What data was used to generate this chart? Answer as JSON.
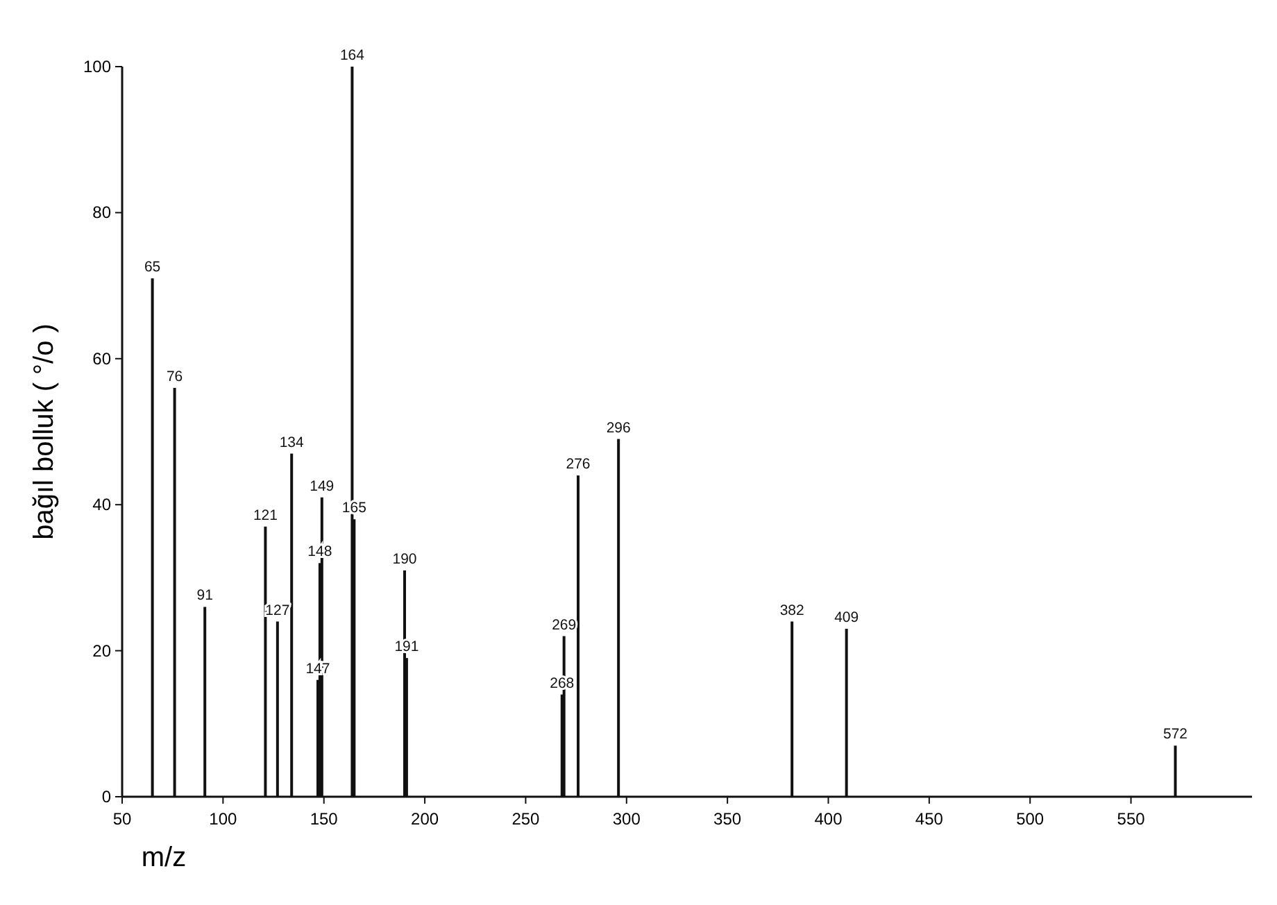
{
  "chart_data": {
    "type": "bar",
    "xlabel": "m/z",
    "ylabel": "bağıl bolluk ( °/o )",
    "x": [
      65,
      76,
      91,
      121,
      127,
      134,
      147,
      148,
      149,
      164,
      165,
      190,
      191,
      268,
      269,
      276,
      296,
      382,
      409,
      572
    ],
    "values": [
      71,
      56,
      26,
      37,
      24,
      47,
      16,
      32,
      41,
      100,
      38,
      31,
      19,
      14,
      22,
      44,
      49,
      24,
      23,
      7
    ],
    "color": "#111111",
    "xlim": [
      50,
      610
    ],
    "xticks": [
      50,
      100,
      150,
      200,
      250,
      300,
      350,
      400,
      450,
      500,
      550
    ],
    "ylim": [
      0,
      100
    ],
    "yticks": [
      0,
      20,
      40,
      60,
      80,
      100
    ],
    "annotations": [
      {
        "text": "65",
        "x": 65,
        "y": 71
      },
      {
        "text": "76",
        "x": 76,
        "y": 56
      },
      {
        "text": "91",
        "x": 91,
        "y": 26
      },
      {
        "text": "121",
        "x": 121,
        "y": 37
      },
      {
        "text": "127",
        "x": 127,
        "y": 24
      },
      {
        "text": "134",
        "x": 134,
        "y": 47
      },
      {
        "text": "147",
        "x": 147,
        "y": 16
      },
      {
        "text": "148",
        "x": 148,
        "y": 32
      },
      {
        "text": "149",
        "x": 149,
        "y": 41
      },
      {
        "text": "164",
        "x": 164,
        "y": 100
      },
      {
        "text": "165",
        "x": 165,
        "y": 38
      },
      {
        "text": "190",
        "x": 190,
        "y": 31
      },
      {
        "text": "191",
        "x": 191,
        "y": 19
      },
      {
        "text": "268",
        "x": 268,
        "y": 14
      },
      {
        "text": "269",
        "x": 269,
        "y": 22
      },
      {
        "text": "276",
        "x": 276,
        "y": 44
      },
      {
        "text": "296",
        "x": 296,
        "y": 49
      },
      {
        "text": "382",
        "x": 382,
        "y": 24
      },
      {
        "text": "409",
        "x": 409,
        "y": 23
      },
      {
        "text": "572",
        "x": 572,
        "y": 7
      }
    ]
  }
}
